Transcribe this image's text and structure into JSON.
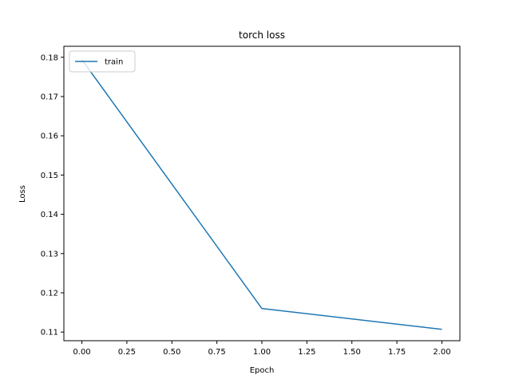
{
  "chart_data": {
    "type": "line",
    "title": "torch loss",
    "xlabel": "Epoch",
    "ylabel": "Loss",
    "xlim": [
      -0.1,
      2.1
    ],
    "ylim": [
      0.1078,
      0.1828
    ],
    "xticks": [
      0.0,
      0.25,
      0.5,
      0.75,
      1.0,
      1.25,
      1.5,
      1.75,
      2.0
    ],
    "xtick_labels": [
      "0.00",
      "0.25",
      "0.50",
      "0.75",
      "1.00",
      "1.25",
      "1.50",
      "1.75",
      "2.00"
    ],
    "yticks": [
      0.11,
      0.12,
      0.13,
      0.14,
      0.15,
      0.16,
      0.17,
      0.18
    ],
    "ytick_labels": [
      "0.11",
      "0.12",
      "0.13",
      "0.14",
      "0.15",
      "0.16",
      "0.17",
      "0.18"
    ],
    "grid": false,
    "legend_position": "top-left",
    "series": [
      {
        "name": "train",
        "color": "#1f77b4",
        "x": [
          0,
          1,
          2
        ],
        "y": [
          0.1794,
          0.116,
          0.1107
        ]
      }
    ]
  }
}
